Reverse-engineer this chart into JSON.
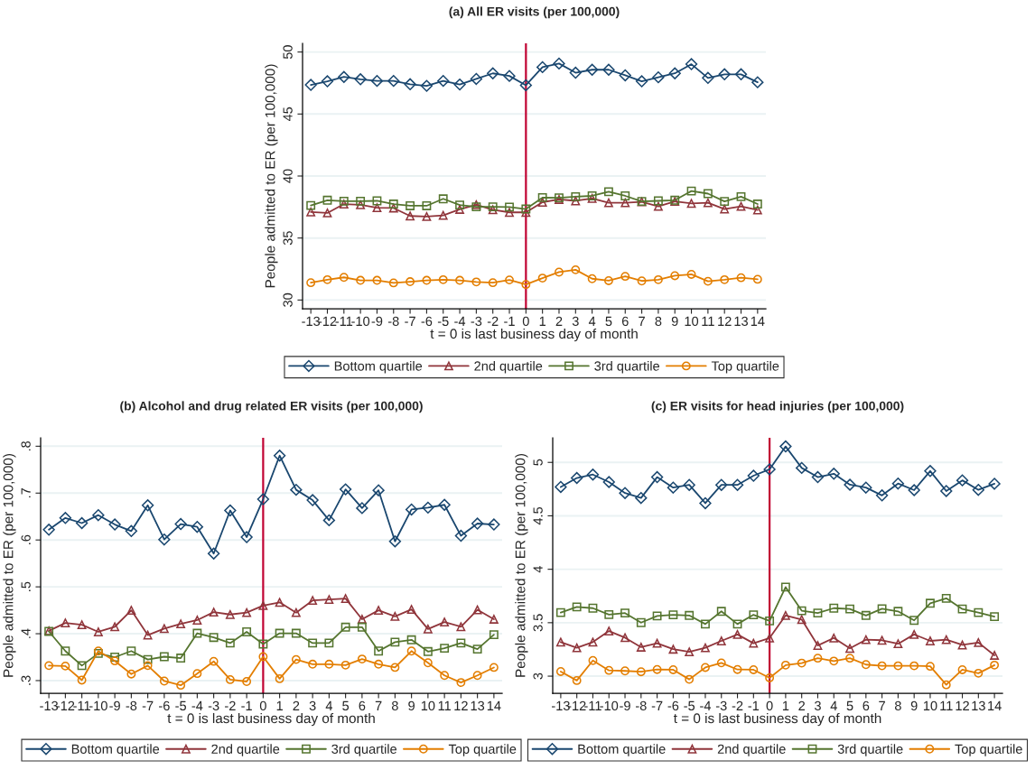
{
  "chart_data": [
    {
      "type": "line",
      "title": "(a) All ER visits (per 100,000)",
      "xlabel": "t = 0 is last business day of month",
      "ylabel": "People admitted to ER (per 100,000)",
      "x": [
        -13,
        -12,
        -11,
        -10,
        -9,
        -8,
        -7,
        -6,
        -5,
        -4,
        -3,
        -2,
        -1,
        0,
        1,
        2,
        3,
        4,
        5,
        6,
        7,
        8,
        9,
        10,
        11,
        12,
        13,
        14
      ],
      "xlim": [
        -13.5,
        14.5
      ],
      "xticks": [
        -13,
        -12,
        -11,
        -10,
        -9,
        -8,
        -7,
        -6,
        -5,
        -4,
        -3,
        -2,
        -1,
        0,
        1,
        2,
        3,
        4,
        5,
        6,
        7,
        8,
        9,
        10,
        11,
        12,
        13,
        14
      ],
      "ylim": [
        29.3,
        50.7
      ],
      "yticks": [
        30,
        35,
        40,
        45,
        50
      ],
      "grid": "y",
      "legend": "bottom",
      "ref_lines": [
        {
          "axis": "x",
          "value": 0,
          "color": "#c10534"
        }
      ],
      "series": [
        {
          "name": "Bottom quartile",
          "color": "#1a476f",
          "marker": "diamond",
          "values": [
            47.35,
            47.64,
            47.99,
            47.8,
            47.67,
            47.67,
            47.4,
            47.27,
            47.67,
            47.38,
            47.83,
            48.28,
            48.07,
            47.32,
            48.78,
            49.07,
            48.33,
            48.57,
            48.57,
            48.12,
            47.64,
            47.96,
            48.28,
            49.02,
            47.91,
            48.2,
            48.2,
            47.56
          ]
        },
        {
          "name": "2nd quartile",
          "color": "#90353b",
          "marker": "triangle",
          "values": [
            37.1,
            37.02,
            37.74,
            37.68,
            37.44,
            37.42,
            36.78,
            36.73,
            36.83,
            37.31,
            37.68,
            37.28,
            37.07,
            37.07,
            37.89,
            38.11,
            38.0,
            38.19,
            37.84,
            37.84,
            37.92,
            37.55,
            37.95,
            37.79,
            37.84,
            37.34,
            37.55,
            37.26
          ]
        },
        {
          "name": "3rd quartile",
          "color": "#55752f",
          "marker": "square",
          "values": [
            37.63,
            38.05,
            37.97,
            37.97,
            38.0,
            37.74,
            37.6,
            37.6,
            38.16,
            37.66,
            37.52,
            37.52,
            37.5,
            37.34,
            38.26,
            38.24,
            38.34,
            38.4,
            38.74,
            38.4,
            37.95,
            38.0,
            38.05,
            38.79,
            38.58,
            37.95,
            38.34,
            37.74
          ]
        },
        {
          "name": "Top quartile",
          "color": "#e37e00",
          "marker": "circle",
          "values": [
            31.4,
            31.64,
            31.83,
            31.59,
            31.59,
            31.38,
            31.48,
            31.59,
            31.64,
            31.59,
            31.46,
            31.4,
            31.62,
            31.25,
            31.77,
            32.25,
            32.44,
            31.72,
            31.56,
            31.91,
            31.54,
            31.64,
            31.96,
            32.07,
            31.51,
            31.64,
            31.8,
            31.67
          ]
        }
      ]
    },
    {
      "type": "line",
      "title": "(b) Alcohol and drug related ER visits (per 100,000)",
      "xlabel": "t = 0 is last business day of month",
      "ylabel": "People admitted to ER (per 100,000)",
      "x": [
        -13,
        -12,
        -11,
        -10,
        -9,
        -8,
        -7,
        -6,
        -5,
        -4,
        -3,
        -2,
        -1,
        0,
        1,
        2,
        3,
        4,
        5,
        6,
        7,
        8,
        9,
        10,
        11,
        12,
        13,
        14
      ],
      "xlim": [
        -13.5,
        14.5
      ],
      "xticks": [
        -13,
        -12,
        -11,
        -10,
        -9,
        -8,
        -7,
        -6,
        -5,
        -4,
        -3,
        -2,
        -1,
        0,
        1,
        2,
        3,
        4,
        5,
        6,
        7,
        8,
        9,
        10,
        11,
        12,
        13,
        14
      ],
      "ylim": [
        0.273,
        0.818
      ],
      "yticks": [
        {
          "value": 0.3,
          "label": ".3"
        },
        {
          "value": 0.4,
          "label": ".4"
        },
        {
          "value": 0.5,
          "label": ".5"
        },
        {
          "value": 0.6,
          "label": ".6"
        },
        {
          "value": 0.7,
          "label": ".7"
        },
        {
          "value": 0.8,
          "label": ".8"
        }
      ],
      "grid": "y",
      "legend": "bottom",
      "ref_lines": [
        {
          "axis": "x",
          "value": 0,
          "color": "#c10534"
        }
      ],
      "series": [
        {
          "name": "Bottom quartile",
          "color": "#1a476f",
          "marker": "diamond",
          "values": [
            0.622,
            0.647,
            0.636,
            0.653,
            0.633,
            0.619,
            0.674,
            0.601,
            0.634,
            0.628,
            0.571,
            0.663,
            0.606,
            0.687,
            0.78,
            0.707,
            0.685,
            0.642,
            0.708,
            0.668,
            0.706,
            0.597,
            0.665,
            0.669,
            0.675,
            0.609,
            0.635,
            0.633
          ]
        },
        {
          "name": "2nd quartile",
          "color": "#90353b",
          "marker": "triangle",
          "values": [
            0.406,
            0.423,
            0.419,
            0.404,
            0.415,
            0.45,
            0.397,
            0.411,
            0.421,
            0.429,
            0.446,
            0.441,
            0.445,
            0.46,
            0.467,
            0.445,
            0.471,
            0.473,
            0.475,
            0.431,
            0.45,
            0.437,
            0.452,
            0.41,
            0.425,
            0.415,
            0.451,
            0.431
          ]
        },
        {
          "name": "3rd quartile",
          "color": "#55752f",
          "marker": "square",
          "values": [
            0.405,
            0.363,
            0.332,
            0.358,
            0.35,
            0.363,
            0.345,
            0.351,
            0.348,
            0.401,
            0.392,
            0.38,
            0.404,
            0.378,
            0.401,
            0.401,
            0.38,
            0.38,
            0.414,
            0.414,
            0.363,
            0.382,
            0.387,
            0.362,
            0.369,
            0.38,
            0.367,
            0.398
          ]
        },
        {
          "name": "Top quartile",
          "color": "#e37e00",
          "marker": "circle",
          "values": [
            0.332,
            0.331,
            0.301,
            0.363,
            0.342,
            0.314,
            0.332,
            0.299,
            0.29,
            0.315,
            0.341,
            0.302,
            0.298,
            0.351,
            0.304,
            0.345,
            0.335,
            0.335,
            0.333,
            0.346,
            0.335,
            0.328,
            0.363,
            0.338,
            0.311,
            0.296,
            0.311,
            0.328
          ]
        }
      ]
    },
    {
      "type": "line",
      "title": "(c) ER visits for head injuries (per 100,000)",
      "xlabel": "t = 0 is last business day of month",
      "ylabel": "People admitted to ER (per 100,000)",
      "x": [
        -13,
        -12,
        -11,
        -10,
        -9,
        -8,
        -7,
        -6,
        -5,
        -4,
        -3,
        -2,
        -1,
        0,
        1,
        2,
        3,
        4,
        5,
        6,
        7,
        8,
        9,
        10,
        11,
        12,
        13,
        14
      ],
      "xlim": [
        -13.5,
        14.5
      ],
      "xticks": [
        -13,
        -12,
        -11,
        -10,
        -9,
        -8,
        -7,
        -6,
        -5,
        -4,
        -3,
        -2,
        -1,
        0,
        1,
        2,
        3,
        4,
        5,
        6,
        7,
        8,
        9,
        10,
        11,
        12,
        13,
        14
      ],
      "ylim": [
        2.84,
        5.23
      ],
      "yticks": [
        3,
        3.5,
        4,
        4.5,
        5
      ],
      "grid": "y",
      "legend": "bottom",
      "ref_lines": [
        {
          "axis": "x",
          "value": 0,
          "color": "#c10534"
        }
      ],
      "series": [
        {
          "name": "Bottom quartile",
          "color": "#1a476f",
          "marker": "diamond",
          "values": [
            4.77,
            4.854,
            4.886,
            4.816,
            4.713,
            4.667,
            4.862,
            4.764,
            4.789,
            4.618,
            4.789,
            4.789,
            4.875,
            4.935,
            5.149,
            4.948,
            4.862,
            4.894,
            4.791,
            4.764,
            4.691,
            4.802,
            4.74,
            4.919,
            4.732,
            4.832,
            4.743,
            4.8
          ]
        },
        {
          "name": "2nd quartile",
          "color": "#90353b",
          "marker": "triangle",
          "values": [
            3.319,
            3.265,
            3.319,
            3.422,
            3.36,
            3.271,
            3.308,
            3.252,
            3.227,
            3.265,
            3.33,
            3.39,
            3.308,
            3.357,
            3.568,
            3.53,
            3.287,
            3.357,
            3.26,
            3.341,
            3.336,
            3.303,
            3.39,
            3.33,
            3.341,
            3.292,
            3.314,
            3.195
          ]
        },
        {
          "name": "3rd quartile",
          "color": "#55752f",
          "marker": "square",
          "values": [
            3.595,
            3.647,
            3.636,
            3.576,
            3.59,
            3.501,
            3.563,
            3.574,
            3.568,
            3.487,
            3.606,
            3.487,
            3.574,
            3.517,
            3.833,
            3.612,
            3.59,
            3.636,
            3.628,
            3.568,
            3.63,
            3.606,
            3.522,
            3.682,
            3.728,
            3.628,
            3.595,
            3.557
          ]
        },
        {
          "name": "Top quartile",
          "color": "#e37e00",
          "marker": "circle",
          "values": [
            3.043,
            2.959,
            3.146,
            3.054,
            3.049,
            3.041,
            3.062,
            3.06,
            2.97,
            3.081,
            3.124,
            3.062,
            3.06,
            2.984,
            3.103,
            3.122,
            3.168,
            3.141,
            3.168,
            3.108,
            3.097,
            3.097,
            3.097,
            3.092,
            2.919,
            3.06,
            3.027,
            3.103
          ]
        }
      ]
    }
  ]
}
